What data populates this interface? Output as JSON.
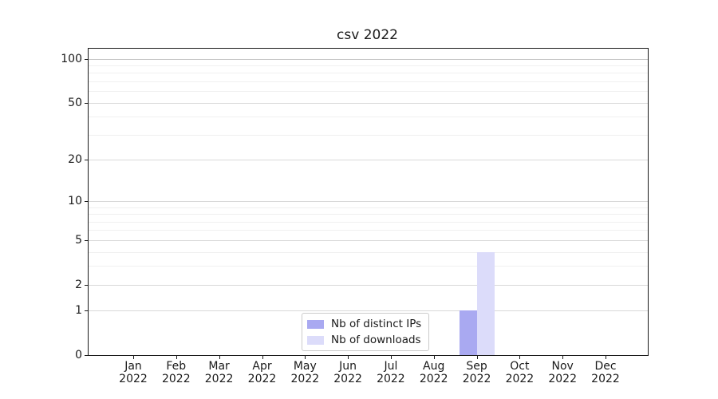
{
  "chart_data": {
    "type": "bar",
    "title": "csv 2022",
    "x": {
      "months": [
        "Jan",
        "Feb",
        "Mar",
        "Apr",
        "May",
        "Jun",
        "Jul",
        "Aug",
        "Sep",
        "Oct",
        "Nov",
        "Dec"
      ],
      "year": "2022"
    },
    "series": [
      {
        "name": "Nb of distinct IPs",
        "color": "#a9a9f1",
        "values": [
          0,
          0,
          0,
          0,
          0,
          0,
          0,
          0,
          1,
          0,
          0,
          0
        ]
      },
      {
        "name": "Nb of downloads",
        "color": "#dcdcfa",
        "values": [
          0,
          0,
          0,
          0,
          0,
          0,
          0,
          0,
          4,
          0,
          0,
          0
        ]
      }
    ],
    "y_axis": {
      "scale": "log1p",
      "major_ticks": [
        0,
        1,
        2,
        5,
        10,
        20,
        50,
        100
      ],
      "minor_ticks": [
        3,
        4,
        6,
        7,
        8,
        9,
        30,
        40,
        60,
        70,
        80,
        90
      ],
      "ylim": [
        0,
        117
      ],
      "grid": true
    },
    "xlabel": "",
    "ylabel": "",
    "legend": {
      "position": "lower center"
    },
    "colors": {
      "spine": "#1a1a1a",
      "grid_major": "#d9d9d9",
      "grid_minor": "#f0f0f0",
      "background": "#ffffff"
    }
  }
}
